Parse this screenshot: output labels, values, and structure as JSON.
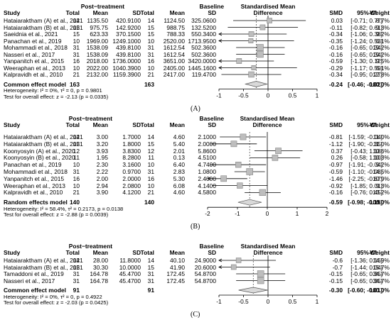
{
  "chart_data": [
    {
      "type": "forest",
      "label": "(A)",
      "header": {
        "study": "Study",
        "group1": "Post−treatment",
        "group2": "Baseline",
        "total": "Total",
        "mean": "Mean",
        "sd": "SD",
        "effect": "Standardised Mean",
        "effect2": "Difference",
        "smd": "SMD",
        "ci": "95%-CI",
        "weight": "Weight"
      },
      "studies": [
        {
          "name": "Hataiaraktham (A) et al., 2021",
          "t1": "14",
          "m1": "1135.50",
          "s1": "420.9100",
          "t2": "14",
          "m2": "1124.50",
          "s2": "325.0600",
          "smd": 0.03,
          "lo": -0.71,
          "hi": 0.77,
          "ci": "[-0.71; 0.77]",
          "w": "8.7%"
        },
        {
          "name": "Hataiaraktham (B) et al., 2021",
          "t1": "15",
          "m1": "975.75",
          "s1": "142.9200",
          "t2": "15",
          "m2": "988.75",
          "s2": "132.5200",
          "smd": -0.11,
          "lo": -0.82,
          "hi": 0.61,
          "ci": "[-0.82; 0.61]",
          "w": "9.3%"
        },
        {
          "name": "Saeidnia et al., 2021",
          "t1": "15",
          "m1": "623.33",
          "s1": "370.1500",
          "t2": "15",
          "m2": "788.33",
          "s2": "550.3400",
          "smd": -0.34,
          "lo": -1.06,
          "hi": 0.38,
          "ci": "[-1.06; 0.38]",
          "w": "9.2%"
        },
        {
          "name": "Panachan et al., 2019",
          "t1": "10",
          "m1": "1969.00",
          "s1": "1249.1000",
          "t2": "10",
          "m2": "2520.00",
          "s2": "1713.9500",
          "smd": -0.35,
          "lo": -1.24,
          "hi": 0.53,
          "ci": "[-1.24; 0.53]",
          "w": "6.1%"
        },
        {
          "name": "Mohammadi et al., 2018",
          "t1": "31",
          "m1": "1538.09",
          "s1": "439.8100",
          "t2": "31",
          "m2": "1612.54",
          "s2": "502.3600",
          "smd": -0.16,
          "lo": -0.65,
          "hi": 0.34,
          "ci": "[-0.65; 0.34]",
          "w": "19.2%"
        },
        {
          "name": "Nasseri et al., 2017",
          "t1": "31",
          "m1": "1538.09",
          "s1": "439.8100",
          "t2": "31",
          "m2": "1612.54",
          "s2": "502.3600",
          "smd": -0.16,
          "lo": -0.65,
          "hi": 0.34,
          "ci": "[-0.65; 0.34]",
          "w": "19.2%"
        },
        {
          "name": "Yanpanitch et al., 2015",
          "t1": "16",
          "m1": "2018.00",
          "s1": "1736.0000",
          "t2": "16",
          "m2": "3651.00",
          "s2": "3420.0000",
          "smd": -0.59,
          "lo": -1.3,
          "hi": 0.12,
          "ci": "[-1.30; 0.12]",
          "w": "9.5%"
        },
        {
          "name": "Weeraphan et al., 2013",
          "t1": "10",
          "m1": "2022.00",
          "s1": "1040.3900",
          "t2": "10",
          "m2": "2405.00",
          "s2": "1445.1600",
          "smd": -0.29,
          "lo": -1.17,
          "hi": 0.59,
          "ci": "[-1.17; 0.59]",
          "w": "6.1%"
        },
        {
          "name": "Kalpravidh et al., 2010",
          "t1": "21",
          "m1": "2132.00",
          "s1": "1159.3900",
          "t2": "21",
          "m2": "2417.00",
          "s2": "119.4700",
          "smd": -0.34,
          "lo": -0.95,
          "hi": 0.27,
          "ci": "[-0.95; 0.27]",
          "w": "12.8%"
        }
      ],
      "pooled": {
        "name": "Common effect model",
        "t1": "163",
        "t2": "163",
        "smd": -0.24,
        "lo": -0.46,
        "hi": -0.02,
        "smd_text": "-0.24",
        "ci": "[-0.46; -0.02]",
        "w": "100.0%"
      },
      "heterogeneity": "Heterogeneity: I² = 0%, τ² = 0, p = 0.9801",
      "overall_test": "Test for overall effect: z = -2.13 (p = 0.0335)",
      "axis": {
        "min": -1,
        "max": 1,
        "ticks": [
          -1,
          -0.5,
          0,
          0.5,
          1
        ],
        "tick_labels": [
          "-1",
          "-0.5",
          "0",
          "0.5",
          "1"
        ]
      }
    },
    {
      "type": "forest",
      "label": "(B)",
      "header": {
        "study": "Study",
        "group1": "Post−treatment",
        "group2": "Baseline",
        "total": "Total",
        "mean": "Mean",
        "sd": "SD",
        "effect": "Standardised Mean",
        "effect2": "Difference",
        "smd": "SMD",
        "ci": "95%-CI",
        "weight": "Weight"
      },
      "studies": [
        {
          "name": "Hataiaraktham (A) et al., 2021",
          "t1": "14",
          "m1": "3.00",
          "s1": "1.7000",
          "t2": "14",
          "m2": "4.60",
          "s2": "2.1000",
          "smd": -0.81,
          "lo": -1.59,
          "hi": -0.04,
          "ci": "[-1.59; -0.04]",
          "w": "11.0%"
        },
        {
          "name": "Hataiaraktham (B) et al., 2021",
          "t1": "15",
          "m1": "3.20",
          "s1": "1.8000",
          "t2": "15",
          "m2": "5.40",
          "s2": "2.0000",
          "smd": -1.12,
          "lo": -1.9,
          "hi": -0.35,
          "ci": "[-1.90; -0.35]",
          "w": "11.0%"
        },
        {
          "name": "Koonyosyin (A) et al., 2020",
          "t1": "12",
          "m1": "3.93",
          "s1": "3.8300",
          "t2": "12",
          "m2": "2.01",
          "s2": "5.8600",
          "smd": 0.37,
          "lo": -0.43,
          "hi": 1.18,
          "ci": "[-0.43; 1.18]",
          "w": "10.6%"
        },
        {
          "name": "Koonyosyin (B) et al., 2020",
          "t1": "11",
          "m1": "1.95",
          "s1": "8.2800",
          "t2": "11",
          "m2": "0.13",
          "s2": "4.5100",
          "smd": 0.26,
          "lo": -0.58,
          "hi": 1.1,
          "ci": "[-0.58; 1.10]",
          "w": "10.3%"
        },
        {
          "name": "Panachan et al., 2019",
          "t1": "10",
          "m1": "2.30",
          "s1": "3.1600",
          "t2": "10",
          "m2": "6.40",
          "s2": "4.7400",
          "smd": -0.97,
          "lo": -1.91,
          "hi": -0.04,
          "ci": "[-1.91; -0.04]",
          "w": "9.2%"
        },
        {
          "name": "Mohammadi et al., 2018",
          "t1": "31",
          "m1": "2.22",
          "s1": "0.9700",
          "t2": "31",
          "m2": "2.83",
          "s2": "1.0800",
          "smd": -0.59,
          "lo": -1.1,
          "hi": -0.08,
          "ci": "[-1.10; -0.08]",
          "w": "14.5%"
        },
        {
          "name": "Yanpanitch et al., 2015",
          "t1": "16",
          "m1": "2.00",
          "s1": "2.0000",
          "t2": "16",
          "m2": "5.30",
          "s2": "2.4000",
          "smd": -1.46,
          "lo": -2.25,
          "hi": -0.67,
          "ci": "[-2.25; -0.67]",
          "w": "10.9%"
        },
        {
          "name": "Weeraphan et al., 2013",
          "t1": "10",
          "m1": "2.94",
          "s1": "2.0800",
          "t2": "10",
          "m2": "6.08",
          "s2": "4.1400",
          "smd": -0.92,
          "lo": -1.85,
          "hi": 0.01,
          "ci": "[-1.85; 0.01]",
          "w": "9.3%"
        },
        {
          "name": "Kalpravidh et al., 2010",
          "t1": "21",
          "m1": "3.90",
          "s1": "4.1200",
          "t2": "21",
          "m2": "4.60",
          "s2": "4.5800",
          "smd": -0.16,
          "lo": -0.76,
          "hi": 0.45,
          "ci": "[-0.76; 0.45]",
          "w": "13.2%"
        }
      ],
      "pooled": {
        "name": "Random effects model",
        "t1": "140",
        "t2": "140",
        "smd": -0.59,
        "lo": -0.98,
        "hi": -0.19,
        "smd_text": "-0.59",
        "ci": "[-0.98; -0.19]",
        "w": "100.0%"
      },
      "heterogeneity": "Heterogeneity: I² = 58.4%, τ² = 0.2173, p = 0.0138",
      "overall_test": "Test for overall effect: z = -2.88 (p = 0.0039)",
      "axis": {
        "min": -2,
        "max": 2,
        "ticks": [
          -2,
          -1,
          0,
          1,
          2
        ],
        "tick_labels": [
          "-2",
          "-1",
          "0",
          "1",
          "2"
        ]
      }
    },
    {
      "type": "forest",
      "label": "(C)",
      "header": {
        "study": "Study",
        "group1": "Post−treatment",
        "group2": "Baseline",
        "total": "Total",
        "mean": "Mean",
        "sd": "SD",
        "effect": "Standardised Mean",
        "effect2": "Difference",
        "smd": "SMD",
        "ci": "95%-CI",
        "weight": "Weight"
      },
      "studies": [
        {
          "name": "Hataiaraktham (A) et al., 2021",
          "t1": "14",
          "m1": "28.00",
          "s1": "11.8000",
          "t2": "14",
          "m2": "40.10",
          "s2": "24.9000",
          "smd": -0.6,
          "lo": -1.36,
          "hi": 0.16,
          "ci": "[-1.36; 0.16]",
          "w": "14.9%"
        },
        {
          "name": "Hataiaraktham (B) et al., 2021",
          "t1": "15",
          "m1": "30.30",
          "s1": "10.0000",
          "t2": "15",
          "m2": "41.90",
          "s2": "20.6000",
          "smd": -0.7,
          "lo": -1.44,
          "hi": 0.04,
          "ci": "[-1.44; 0.04]",
          "w": "15.7%"
        },
        {
          "name": "Tamaddoni et al., 2019",
          "t1": "31",
          "m1": "164.78",
          "s1": "45.4700",
          "t2": "31",
          "m2": "172.45",
          "s2": "54.8700",
          "smd": -0.15,
          "lo": -0.65,
          "hi": 0.35,
          "ci": "[-0.65; 0.35]",
          "w": "34.7%"
        },
        {
          "name": "Nasseri et al., 2017",
          "t1": "31",
          "m1": "164.78",
          "s1": "45.4700",
          "t2": "31",
          "m2": "172.45",
          "s2": "54.8700",
          "smd": -0.15,
          "lo": -0.65,
          "hi": 0.35,
          "ci": "[-0.65; 0.35]",
          "w": "34.7%"
        }
      ],
      "pooled": {
        "name": "Common effect model",
        "t1": "91",
        "t2": "91",
        "smd": -0.3,
        "lo": -0.6,
        "hi": -0.01,
        "smd_text": "-0.30",
        "ci": "[-0.60; -0.01]",
        "w": "100.0%"
      },
      "heterogeneity": "Heterogeneity: I² = 0%, τ² = 0, p = 0.4922",
      "overall_test": "Test for overall effect: z = -2.03 (p = 0.0425)",
      "axis": {
        "min": -1,
        "max": 1,
        "ticks": [
          -1,
          -0.5,
          0,
          0.5,
          1
        ],
        "tick_labels": [
          "-1",
          "-0.5",
          "0",
          "0.5",
          "1"
        ]
      }
    }
  ]
}
